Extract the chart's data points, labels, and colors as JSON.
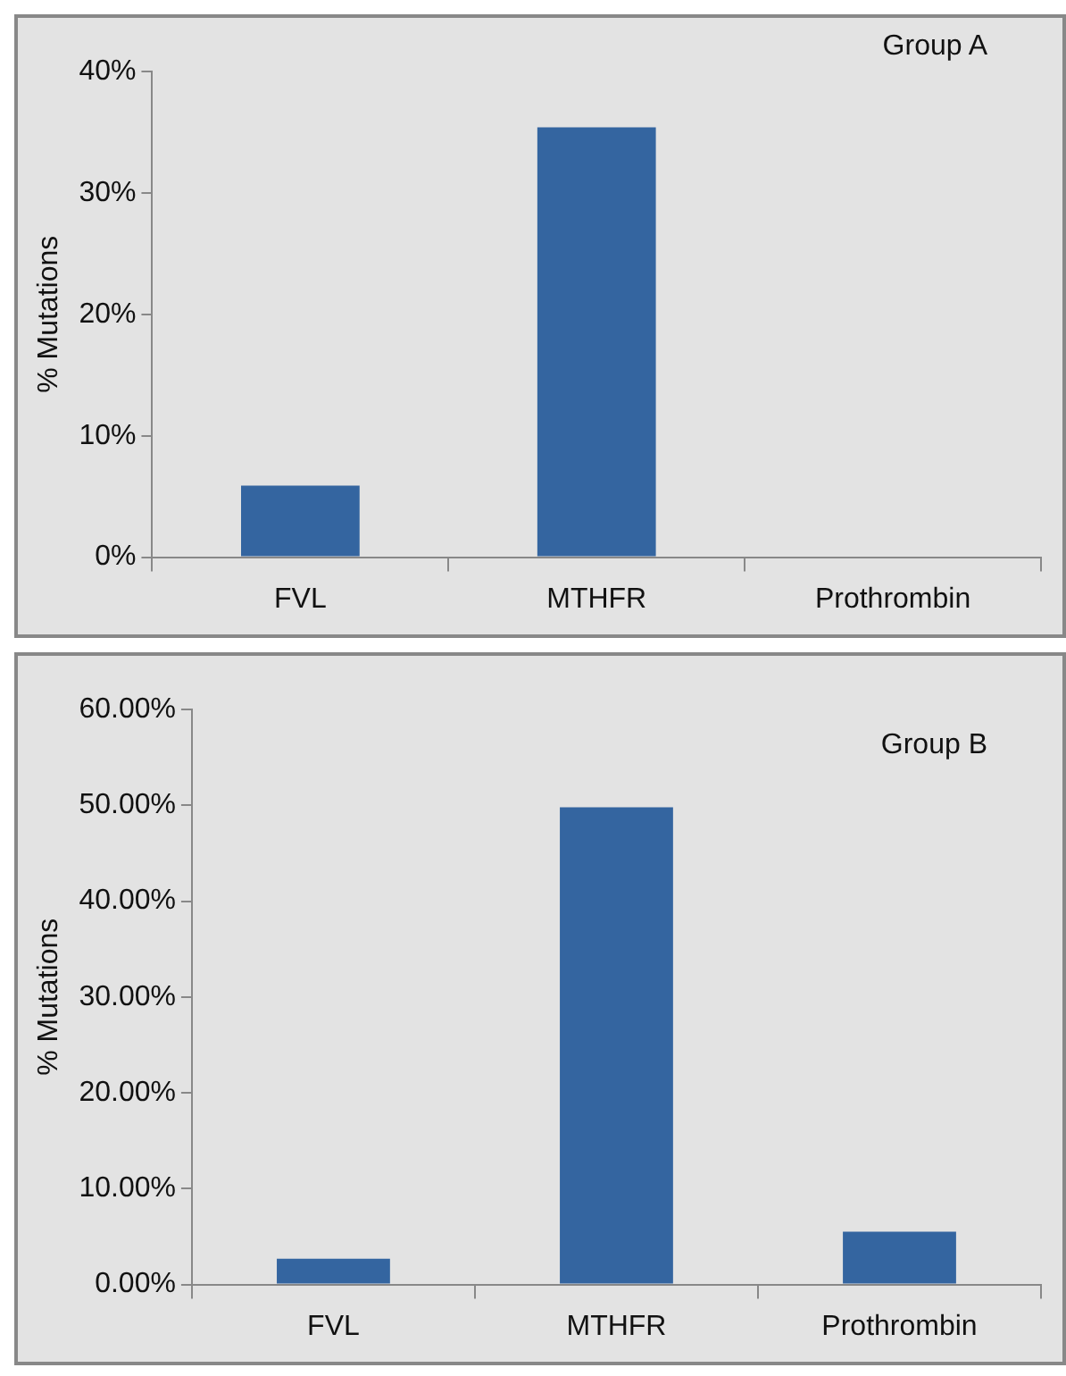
{
  "chart_data": [
    {
      "type": "bar",
      "title": "Group A",
      "ylabel": "% Mutations",
      "categories": [
        "FVL",
        "MTHFR",
        "Prothrombin"
      ],
      "values": [
        5.9,
        35.4,
        0
      ],
      "color": "#3465a0",
      "ylim": [
        0,
        40
      ],
      "yticks": [
        {
          "value": 0,
          "label": "0%"
        },
        {
          "value": 10,
          "label": "10%"
        },
        {
          "value": 20,
          "label": "20%"
        },
        {
          "value": 30,
          "label": "30%"
        },
        {
          "value": 40,
          "label": "40%"
        }
      ],
      "grid": false,
      "legend": false
    },
    {
      "type": "bar",
      "title": "Group B",
      "ylabel": "% Mutations",
      "categories": [
        "FVL",
        "MTHFR",
        "Prothrombin"
      ],
      "values": [
        2.7,
        49.8,
        5.5
      ],
      "color": "#3465a0",
      "ylim": [
        0,
        60
      ],
      "yticks": [
        {
          "value": 0,
          "label": "0.00%"
        },
        {
          "value": 10,
          "label": "10.00%"
        },
        {
          "value": 20,
          "label": "20.00%"
        },
        {
          "value": 30,
          "label": "30.00%"
        },
        {
          "value": 40,
          "label": "40.00%"
        },
        {
          "value": 50,
          "label": "50.00%"
        },
        {
          "value": 60,
          "label": "60.00%"
        }
      ],
      "grid": false,
      "legend": false
    }
  ]
}
